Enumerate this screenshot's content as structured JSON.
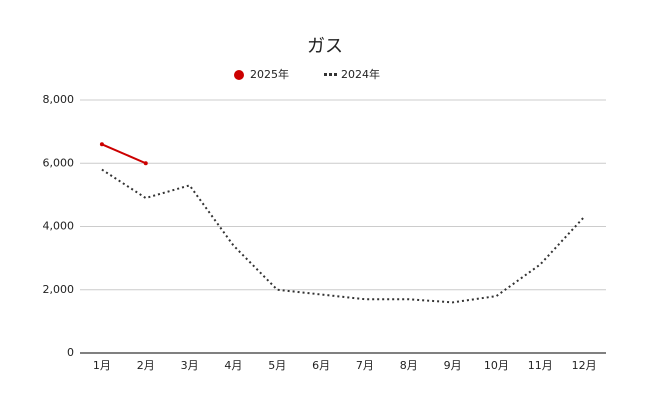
{
  "chart_data": {
    "type": "line",
    "title": "ガス",
    "categories": [
      "1月",
      "2月",
      "3月",
      "4月",
      "5月",
      "6月",
      "7月",
      "8月",
      "9月",
      "10月",
      "11月",
      "12月"
    ],
    "series": [
      {
        "name": "2025年",
        "color": "#cc0000",
        "style": "solid",
        "values": [
          6600,
          6000,
          null,
          null,
          null,
          null,
          null,
          null,
          null,
          null,
          null,
          null
        ]
      },
      {
        "name": "2024年",
        "color": "#333333",
        "style": "dotted",
        "values": [
          5800,
          4900,
          5300,
          3400,
          2000,
          1850,
          1700,
          1700,
          1600,
          1800,
          2800,
          4300
        ]
      }
    ],
    "ylim": [
      0,
      8000
    ],
    "yticks": [
      0,
      {
        "value": 2000,
        "label": "2,000"
      },
      {
        "value": 4000,
        "label": "4,000"
      },
      {
        "value": 6000,
        "label": "6,000"
      },
      {
        "value": 8000,
        "label": "8,000"
      }
    ],
    "grid": true,
    "legend": "top"
  }
}
